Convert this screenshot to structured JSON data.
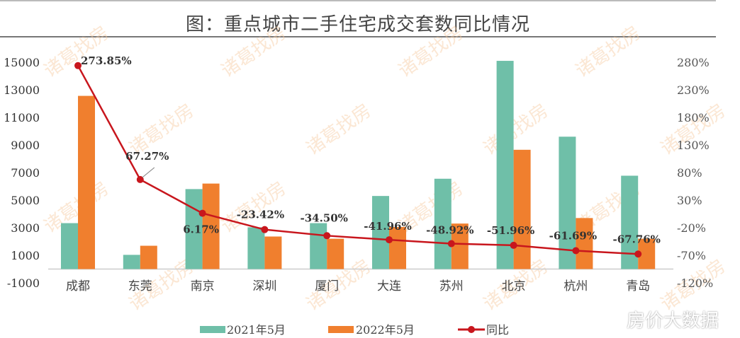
{
  "chart_data": {
    "type": "bar+line",
    "title": "图：重点城市二手住宅成交套数同比情况",
    "categories": [
      "成都",
      "东莞",
      "南京",
      "深圳",
      "厦门",
      "大连",
      "苏州",
      "北京",
      "杭州",
      "青岛"
    ],
    "series": [
      {
        "name": "2021年5月",
        "type": "bar",
        "axis": "left",
        "color": "#6fbfa8",
        "values": [
          3330,
          1030,
          5800,
          3030,
          3330,
          5300,
          6550,
          15100,
          9600,
          6770
        ]
      },
      {
        "name": "2022年5月",
        "type": "bar",
        "axis": "left",
        "color": "#f07f2e",
        "values": [
          12560,
          1690,
          6200,
          2360,
          2200,
          3050,
          3300,
          8650,
          3700,
          2200
        ]
      },
      {
        "name": "同比",
        "type": "line",
        "axis": "right",
        "color": "#c8161d",
        "values": [
          273.85,
          67.27,
          6.17,
          -23.42,
          -34.5,
          -41.96,
          -48.92,
          -51.96,
          -61.69,
          -67.76
        ],
        "labels": [
          "273.85%",
          "67.27%",
          "6.17%",
          "-23.42%",
          "-34.50%",
          "-41.96%",
          "-48.92%",
          "-51.96%",
          "-61.69%",
          "-67.76%"
        ]
      }
    ],
    "left_axis": {
      "ylim": [
        -1000,
        15000
      ],
      "ticks": [
        "15000",
        "13000",
        "11000",
        "9000",
        "7000",
        "5000",
        "3000",
        "1000",
        "-1000"
      ]
    },
    "right_axis": {
      "ylim": [
        -120,
        280
      ],
      "ticks": [
        "280%",
        "230%",
        "180%",
        "130%",
        "80%",
        "30%",
        "-20%",
        "-70%",
        "-120%"
      ]
    },
    "legend_position": "bottom",
    "grid": false
  },
  "watermark": "诸葛找房",
  "overlay_text": "房价大数据"
}
